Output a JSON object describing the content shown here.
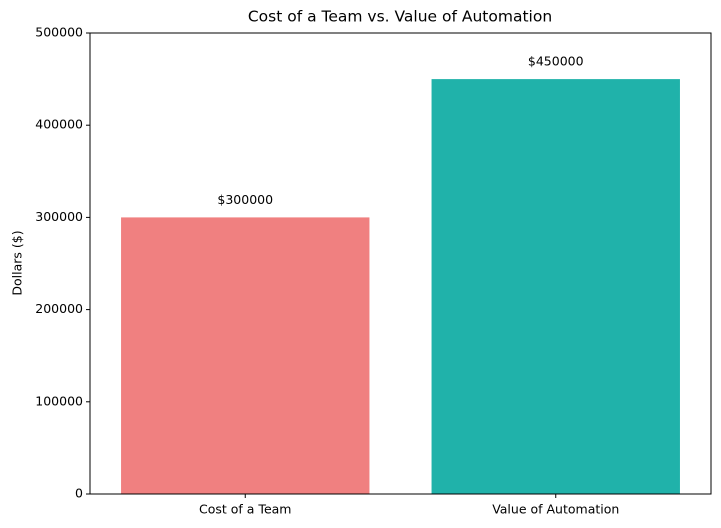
{
  "chart_data": {
    "type": "bar",
    "title": "Cost of a Team vs. Value of Automation",
    "ylabel": "Dollars ($)",
    "categories": [
      "Cost of a Team",
      "Value of Automation"
    ],
    "values": [
      300000,
      450000
    ],
    "value_labels": [
      "$300000",
      "$450000"
    ],
    "colors": [
      "#f08080",
      "#20b2aa"
    ],
    "ylim": [
      0,
      500000
    ],
    "yticks": [
      0,
      100000,
      200000,
      300000,
      400000,
      500000
    ],
    "grid": false
  }
}
